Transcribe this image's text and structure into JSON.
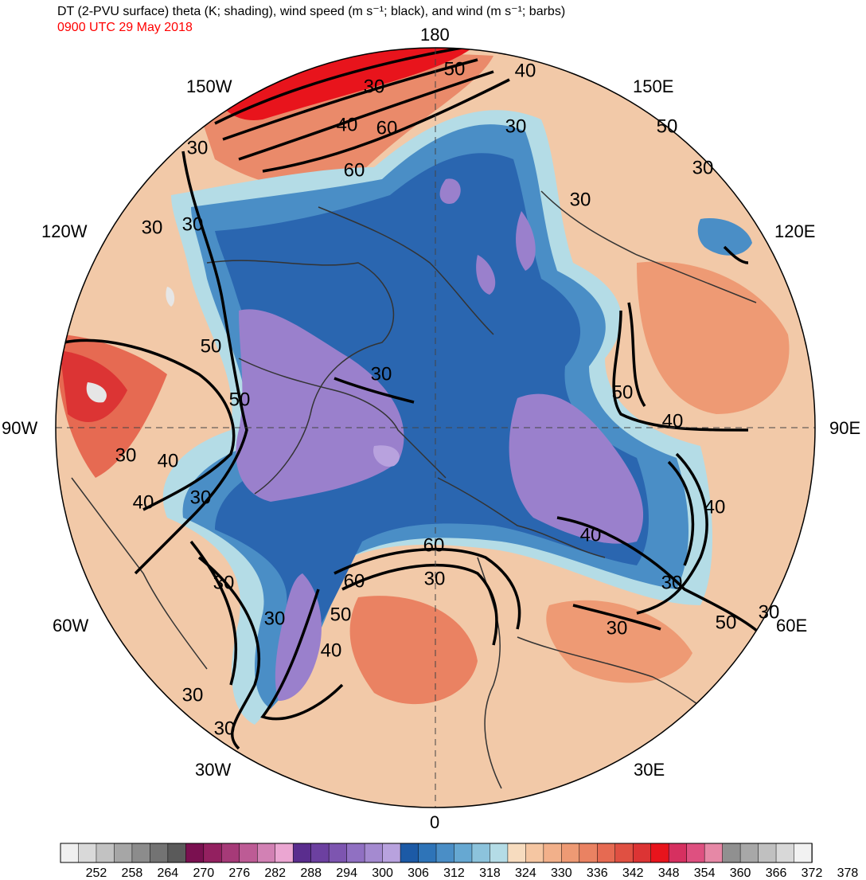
{
  "header": {
    "title": "DT (2-PVU surface) theta (K; shading), wind speed (m s⁻¹; black), and wind (m s⁻¹; barbs)",
    "valid_time": "0900 UTC 29 May 2018"
  },
  "longitude_labels": {
    "lon_180": "180",
    "lon_150e": "150E",
    "lon_120e": "120E",
    "lon_90e": "90E",
    "lon_60e": "60E",
    "lon_30e": "30E",
    "lon_0": "0",
    "lon_30w": "30W",
    "lon_60w": "60W",
    "lon_90w": "90W",
    "lon_120w": "120W",
    "lon_150w": "150W"
  },
  "contour_labels": [
    {
      "id": "c1",
      "text": "50"
    },
    {
      "id": "c2",
      "text": "40"
    },
    {
      "id": "c3",
      "text": "30"
    },
    {
      "id": "c4",
      "text": "40"
    },
    {
      "id": "c5",
      "text": "60"
    },
    {
      "id": "c6",
      "text": "60"
    },
    {
      "id": "c7",
      "text": "30"
    },
    {
      "id": "c8",
      "text": "50"
    },
    {
      "id": "c9",
      "text": "30"
    },
    {
      "id": "c10",
      "text": "30"
    },
    {
      "id": "c11",
      "text": "30"
    },
    {
      "id": "c12",
      "text": "30"
    },
    {
      "id": "c13",
      "text": "30"
    },
    {
      "id": "c14",
      "text": "50"
    },
    {
      "id": "c15",
      "text": "50"
    },
    {
      "id": "c16",
      "text": "30"
    },
    {
      "id": "c17",
      "text": "40"
    },
    {
      "id": "c18",
      "text": "40"
    },
    {
      "id": "c19",
      "text": "30"
    },
    {
      "id": "c20",
      "text": "30"
    },
    {
      "id": "c21",
      "text": "50"
    },
    {
      "id": "c22",
      "text": "40"
    },
    {
      "id": "c23",
      "text": "40"
    },
    {
      "id": "c24",
      "text": "40"
    },
    {
      "id": "c25",
      "text": "60"
    },
    {
      "id": "c26",
      "text": "30"
    },
    {
      "id": "c27",
      "text": "60"
    },
    {
      "id": "c28",
      "text": "50"
    },
    {
      "id": "c29",
      "text": "40"
    },
    {
      "id": "c30",
      "text": "30"
    },
    {
      "id": "c31",
      "text": "30"
    },
    {
      "id": "c32",
      "text": "30"
    },
    {
      "id": "c33",
      "text": "30"
    },
    {
      "id": "c34",
      "text": "50"
    },
    {
      "id": "c35",
      "text": "30"
    },
    {
      "id": "c36",
      "text": "30"
    },
    {
      "id": "c37",
      "text": "30"
    }
  ],
  "colorbar": {
    "labels": [
      "252",
      "258",
      "264",
      "270",
      "276",
      "282",
      "288",
      "294",
      "300",
      "306",
      "312",
      "318",
      "324",
      "330",
      "336",
      "342",
      "348",
      "354",
      "360",
      "366",
      "372",
      "378"
    ],
    "colors": [
      "#f0f0f0",
      "#d9d9d9",
      "#c2c2c2",
      "#a6a6a6",
      "#8c8c8c",
      "#737373",
      "#5a5a5a",
      "#7a1050",
      "#932060",
      "#a63a78",
      "#bd5b95",
      "#d281b4",
      "#eba6d2",
      "#5a2d8e",
      "#6c40a0",
      "#7d55b0",
      "#9070c2",
      "#a48ad0",
      "#b8a2de",
      "#1c5aa6",
      "#2e74b8",
      "#4a8ec6",
      "#66a8d2",
      "#8cc3dc",
      "#b4dce6",
      "#f7dcbf",
      "#f5c6a2",
      "#f2b08a",
      "#ee9a74",
      "#ea8262",
      "#e66a52",
      "#e05042",
      "#dc3434",
      "#e8141c",
      "#d63060",
      "#de5080",
      "#e688a6",
      "#909090",
      "#a8a8a8",
      "#c0c0c0",
      "#d8d8d8",
      "#f2f2f2"
    ]
  },
  "map_colors": {
    "base": "#f2c9a8",
    "warm": "#ea8a6a",
    "hot": "#e8141c",
    "cold_outer": "#b4dce6",
    "cold_mid": "#4a8ec6",
    "cold_inner": "#2a66b0",
    "cold_core": "#9a80cc",
    "contour": "#000000",
    "coast": "#333333"
  }
}
